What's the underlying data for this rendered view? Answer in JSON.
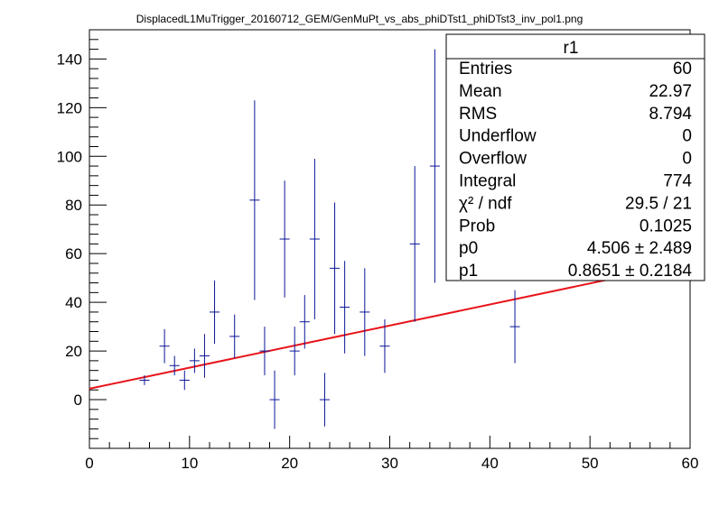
{
  "chart_data": {
    "type": "scatter",
    "title": "DisplacedL1MuTrigger_20160712_GEM/GenMuPt_vs_abs_phiDTst1_phiDTst3_inv_pol1.png",
    "xlabel": "",
    "ylabel": "",
    "xlim": [
      0,
      60
    ],
    "ylim": [
      -20,
      152
    ],
    "xticks": [
      "0",
      "10",
      "20",
      "30",
      "40",
      "50",
      "60"
    ],
    "yticks": [
      "0",
      "20",
      "40",
      "60",
      "80",
      "100",
      "120",
      "140"
    ],
    "grid": false,
    "points": [
      {
        "x": 5.5,
        "y": 8,
        "ylo": 6,
        "yhi": 10
      },
      {
        "x": 7.5,
        "y": 22,
        "ylo": 15,
        "yhi": 29
      },
      {
        "x": 8.5,
        "y": 14,
        "ylo": 10,
        "yhi": 18
      },
      {
        "x": 9.5,
        "y": 8,
        "ylo": 4,
        "yhi": 12
      },
      {
        "x": 10.5,
        "y": 16,
        "ylo": 11,
        "yhi": 21
      },
      {
        "x": 11.5,
        "y": 18,
        "ylo": 9,
        "yhi": 27
      },
      {
        "x": 12.5,
        "y": 36,
        "ylo": 23,
        "yhi": 49
      },
      {
        "x": 14.5,
        "y": 26,
        "ylo": 17,
        "yhi": 35
      },
      {
        "x": 16.5,
        "y": 82,
        "ylo": 41,
        "yhi": 123
      },
      {
        "x": 17.5,
        "y": 20,
        "ylo": 10,
        "yhi": 30
      },
      {
        "x": 18.5,
        "y": 0,
        "ylo": -12,
        "yhi": 12
      },
      {
        "x": 19.5,
        "y": 66,
        "ylo": 42,
        "yhi": 90
      },
      {
        "x": 20.5,
        "y": 20,
        "ylo": 10,
        "yhi": 30
      },
      {
        "x": 21.5,
        "y": 32,
        "ylo": 21,
        "yhi": 43
      },
      {
        "x": 22.5,
        "y": 66,
        "ylo": 33,
        "yhi": 99
      },
      {
        "x": 23.5,
        "y": 0,
        "ylo": -11,
        "yhi": 11
      },
      {
        "x": 24.5,
        "y": 54,
        "ylo": 27,
        "yhi": 81
      },
      {
        "x": 25.5,
        "y": 38,
        "ylo": 19,
        "yhi": 57
      },
      {
        "x": 27.5,
        "y": 36,
        "ylo": 18,
        "yhi": 54
      },
      {
        "x": 29.5,
        "y": 22,
        "ylo": 11,
        "yhi": 33
      },
      {
        "x": 32.5,
        "y": 64,
        "ylo": 32,
        "yhi": 96
      },
      {
        "x": 34.5,
        "y": 96,
        "ylo": 48,
        "yhi": 144
      },
      {
        "x": 42.5,
        "y": 30,
        "ylo": 15,
        "yhi": 45
      }
    ],
    "fit": {
      "type": "pol1",
      "p0": 4.506,
      "p1": 0.8651,
      "color": "#e8141b"
    },
    "marker_color": "#0b1596",
    "stats_box": {
      "title": "r1",
      "placement": "top-right",
      "rows": [
        {
          "label": "Entries",
          "value": "60"
        },
        {
          "label": "Mean",
          "value": "22.97"
        },
        {
          "label": "RMS",
          "value": "8.794"
        },
        {
          "label": "Underflow",
          "value": "0"
        },
        {
          "label": "Overflow",
          "value": "0"
        },
        {
          "label": "Integral",
          "value": "774"
        },
        {
          "label": "χ² / ndf",
          "value": "29.5 / 21"
        },
        {
          "label": "Prob",
          "value": "0.1025"
        },
        {
          "label": "p0",
          "value": "4.506 ± 2.489"
        },
        {
          "label": "p1",
          "value": "0.8651 ± 0.2184"
        }
      ]
    }
  }
}
